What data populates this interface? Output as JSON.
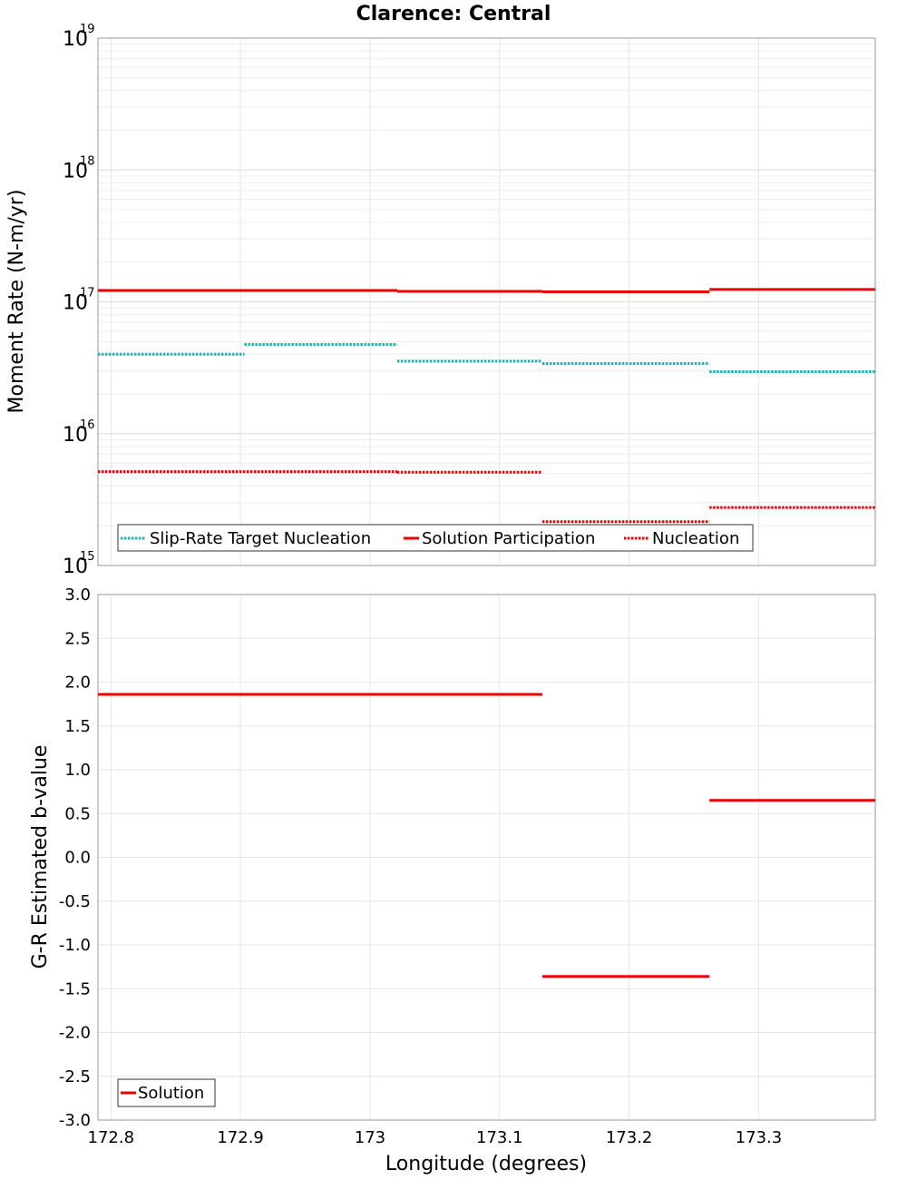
{
  "chart_data": [
    {
      "type": "line",
      "panel": "top",
      "title": "Clarence: Central",
      "ylabel": "Moment Rate (N-m/yr)",
      "yscale": "log",
      "ylim": [
        1000000000000000.0,
        1e+19
      ],
      "xlim": [
        172.79,
        173.39
      ],
      "y_ticks": [
        {
          "base": "10",
          "exp": "19",
          "value": 1e+19
        },
        {
          "base": "10",
          "exp": "18",
          "value": 1e+18
        },
        {
          "base": "10",
          "exp": "17",
          "value": 1e+17
        },
        {
          "base": "10",
          "exp": "16",
          "value": 1e+16
        },
        {
          "base": "10",
          "exp": "15",
          "value": 1000000000000000.0
        }
      ],
      "grid": true,
      "legend_position": "bottom-left",
      "series": [
        {
          "name": "Slip-Rate Target Nucleation",
          "style": "dotted",
          "color": "#18b4b4",
          "segments": [
            {
              "x0": 172.79,
              "x1": 172.903,
              "y": 4e+16
            },
            {
              "x0": 172.903,
              "x1": 173.021,
              "y": 4.75e+16
            },
            {
              "x0": 173.021,
              "x1": 173.133,
              "y": 3.55e+16
            },
            {
              "x0": 173.133,
              "x1": 173.262,
              "y": 3.4e+16
            },
            {
              "x0": 173.262,
              "x1": 173.39,
              "y": 2.95e+16
            }
          ]
        },
        {
          "name": "Solution Participation",
          "style": "solid",
          "color": "#ee0000",
          "segments": [
            {
              "x0": 172.79,
              "x1": 173.021,
              "y": 1.22e+17
            },
            {
              "x0": 173.021,
              "x1": 173.133,
              "y": 1.2e+17
            },
            {
              "x0": 173.133,
              "x1": 173.262,
              "y": 1.19e+17
            },
            {
              "x0": 173.262,
              "x1": 173.39,
              "y": 1.24e+17
            }
          ]
        },
        {
          "name": "Nucleation",
          "style": "dotted",
          "color": "#ee0000",
          "segments": [
            {
              "x0": 172.79,
              "x1": 173.021,
              "y": 5150000000000000.0
            },
            {
              "x0": 173.021,
              "x1": 173.133,
              "y": 5100000000000000.0
            },
            {
              "x0": 173.133,
              "x1": 173.262,
              "y": 2150000000000000.0
            },
            {
              "x0": 173.262,
              "x1": 173.39,
              "y": 2750000000000000.0
            }
          ]
        }
      ]
    },
    {
      "type": "line",
      "panel": "bottom",
      "ylabel": "G-R Estimated b-value",
      "xlabel": "Longitude (degrees)",
      "ylim": [
        -3.0,
        3.0
      ],
      "xlim": [
        172.79,
        173.39
      ],
      "y_ticks": [
        "3.0",
        "2.5",
        "2.0",
        "1.5",
        "1.0",
        "0.5",
        "0.0",
        "-0.5",
        "-1.0",
        "-1.5",
        "-2.0",
        "-2.5",
        "-3.0"
      ],
      "x_ticks": [
        "172.8",
        "172.9",
        "173",
        "173.1",
        "173.2",
        "173.3"
      ],
      "x_tick_values": [
        172.8,
        172.9,
        173.0,
        173.1,
        173.2,
        173.3
      ],
      "grid": true,
      "legend_position": "bottom-left",
      "series": [
        {
          "name": "Solution",
          "style": "solid",
          "color": "#ee0000",
          "segments": [
            {
              "x0": 172.79,
              "x1": 173.133,
              "y": 1.86
            },
            {
              "x0": 173.133,
              "x1": 173.262,
              "y": -1.36
            },
            {
              "x0": 173.262,
              "x1": 173.39,
              "y": 0.65
            }
          ]
        }
      ]
    }
  ]
}
